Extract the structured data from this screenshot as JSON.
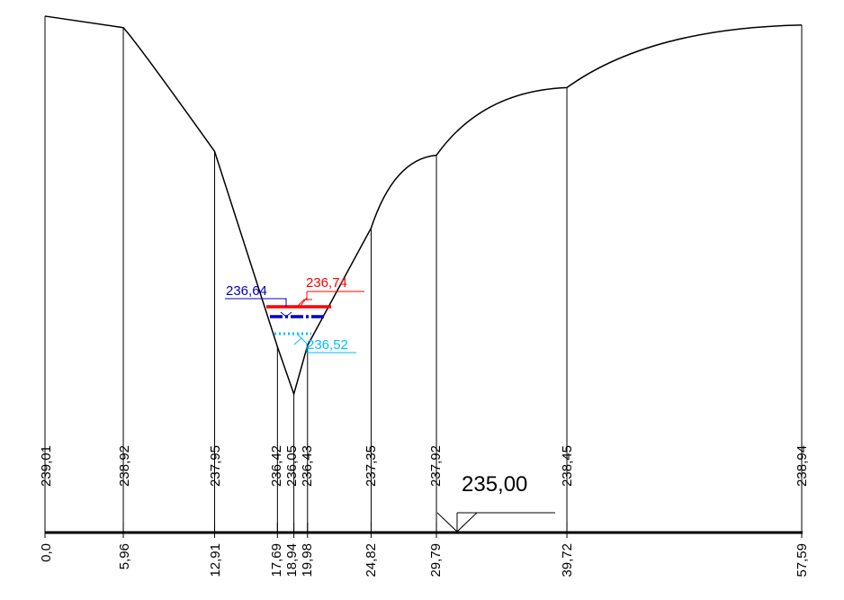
{
  "chart_data": {
    "type": "line",
    "stations": [
      "0,0",
      "5,96",
      "12,91",
      "17,69",
      "18,94",
      "19,98",
      "24,82",
      "29,79",
      "39,72",
      "57,59"
    ],
    "station_values": [
      0.0,
      5.96,
      12.91,
      17.69,
      18.94,
      19.98,
      24.82,
      29.79,
      39.72,
      57.59
    ],
    "elevations": [
      "239,01",
      "238,92",
      "237,95",
      "236,42",
      "236,05",
      "236,43",
      "237,35",
      "237,92",
      "238,45",
      "238,94"
    ],
    "elevation_values": [
      239.01,
      238.92,
      237.95,
      236.42,
      236.05,
      236.43,
      237.35,
      237.92,
      238.45,
      238.94
    ],
    "profile": [
      [
        0.0,
        239.01
      ],
      [
        5.96,
        238.92
      ],
      [
        12.91,
        237.95
      ],
      [
        17.69,
        236.42
      ],
      [
        18.94,
        236.05
      ],
      [
        19.98,
        236.43
      ],
      [
        24.82,
        237.35
      ],
      [
        29.79,
        237.92
      ],
      [
        39.72,
        238.45
      ],
      [
        57.59,
        238.94
      ]
    ],
    "datum": {
      "label": "235,00",
      "value": 235.0
    },
    "water_levels": [
      {
        "label": "236,74",
        "value": 236.74,
        "color": "#ff0000",
        "style": "solid"
      },
      {
        "label": "236,64",
        "value": 236.64,
        "color": "#0000cc",
        "style": "dash-dot"
      },
      {
        "label": "236,52",
        "value": 236.52,
        "color": "#00bfff",
        "style": "dotted"
      }
    ]
  }
}
